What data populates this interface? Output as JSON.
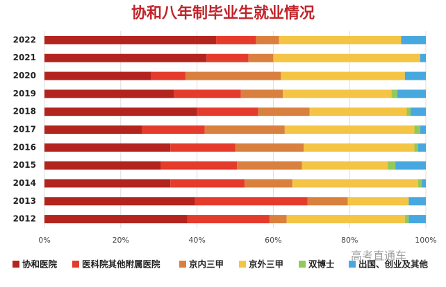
{
  "chart_data": {
    "type": "stacked-bar-horizontal",
    "title": "协和八年制毕业生就业情况",
    "categories": [
      "2022",
      "2021",
      "2020",
      "2019",
      "2018",
      "2017",
      "2016",
      "2015",
      "2014",
      "2013",
      "2012"
    ],
    "series": [
      {
        "name": "协和医院",
        "color": "#b3241f",
        "values": [
          45,
          42.5,
          28,
          34,
          40,
          25.5,
          33,
          30.5,
          33,
          39.5,
          37.5
        ]
      },
      {
        "name": "医科院其他附属医院",
        "color": "#e53b2c",
        "values": [
          10.5,
          11,
          9,
          17.5,
          16,
          16.5,
          17,
          20,
          19.5,
          29.5,
          21.5
        ]
      },
      {
        "name": "京内三甲",
        "color": "#d9803e",
        "values": [
          6,
          6.5,
          25,
          11,
          13.5,
          21,
          18,
          17,
          12.5,
          10.5,
          4.5
        ]
      },
      {
        "name": "京外三甲",
        "color": "#f4c445",
        "values": [
          32,
          38.5,
          32.5,
          28.5,
          25.5,
          34,
          29,
          22.5,
          33,
          16,
          31
        ]
      },
      {
        "name": "双博士",
        "color": "#92c95a",
        "values": [
          0,
          0,
          0,
          1.5,
          1,
          1.5,
          1,
          2,
          1,
          0,
          1
        ]
      },
      {
        "name": "出国、创业及其他",
        "color": "#47a8e0",
        "values": [
          6.5,
          1.5,
          5.5,
          7.5,
          4,
          1.5,
          2,
          8,
          1,
          4.5,
          4.5
        ]
      }
    ],
    "xlim": [
      0,
      100
    ],
    "xticks": [
      {
        "value": 0,
        "label": "0%"
      },
      {
        "value": 20,
        "label": "20%"
      },
      {
        "value": 40,
        "label": "40%"
      },
      {
        "value": 60,
        "label": "60%"
      },
      {
        "value": 80,
        "label": "80%"
      },
      {
        "value": 100,
        "label": "100%"
      }
    ],
    "grid": true,
    "watermark": "高考直通车"
  }
}
